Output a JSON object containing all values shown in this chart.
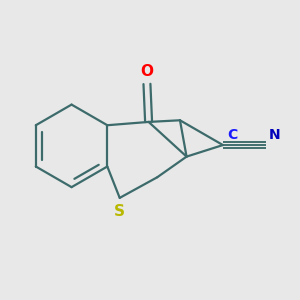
{
  "background_color": "#e8e8e8",
  "bond_color": "#3d6b6b",
  "bond_width": 1.6,
  "atom_colors": {
    "O": "#ff0000",
    "S": "#b8b800",
    "C": "#1a1aff",
    "N": "#0000bb"
  },
  "figsize": [
    3.0,
    3.0
  ],
  "dpi": 100,
  "xlim": [
    -1.7,
    1.9
  ],
  "ylim": [
    -1.2,
    1.1
  ]
}
